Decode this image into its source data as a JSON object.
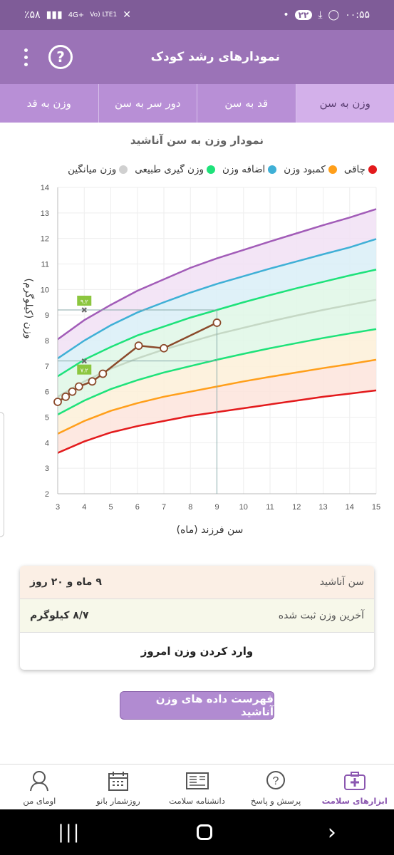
{
  "status": {
    "time": "۰۰:۵۵",
    "notif_count": "۲۲",
    "battery": "٪۵۸",
    "network": "4G+",
    "lte": "Vo) LTE1"
  },
  "appbar": {
    "title": "نمودارهای رشد کودک",
    "help": "?"
  },
  "tabs": [
    {
      "label": "وزن به سن",
      "active": true
    },
    {
      "label": "قد به سن",
      "active": false
    },
    {
      "label": "دور سر به سن",
      "active": false
    },
    {
      "label": "وزن به قد",
      "active": false
    }
  ],
  "chart_title": "نمودار وزن به سن آناشید",
  "legend": [
    {
      "label": "چاقی",
      "color": "#e31a1c"
    },
    {
      "label": "کمبود وزن",
      "color": "#ff9f1a"
    },
    {
      "label": "اضافه وزن",
      "color": "#3fb0d6"
    },
    {
      "label": "وزن گیری طبیعی",
      "color": "#1ee27a"
    },
    {
      "label": "وزن میانگین",
      "color": "#d0d0d0"
    }
  ],
  "chart_data": {
    "type": "line",
    "xlabel": "سن فرزند (ماه)",
    "ylabel": "وزن (کیلوگرم)",
    "xlim": [
      3,
      15
    ],
    "ylim": [
      2,
      14
    ],
    "xticks": [
      3,
      4,
      5,
      6,
      7,
      8,
      9,
      10,
      11,
      12,
      13,
      14,
      15
    ],
    "yticks": [
      2,
      3,
      4,
      5,
      6,
      7,
      8,
      9,
      10,
      11,
      12,
      13,
      14
    ],
    "series": [
      {
        "kind": "curve",
        "color": "#e31a1c",
        "x": [
          3,
          4,
          5,
          6,
          7,
          8,
          9,
          10,
          11,
          12,
          13,
          14,
          15
        ],
        "values": [
          3.6,
          4.05,
          4.4,
          4.65,
          4.85,
          5.05,
          5.2,
          5.35,
          5.5,
          5.65,
          5.8,
          5.92,
          6.05
        ]
      },
      {
        "kind": "curve",
        "color": "#ff9f1a",
        "x": [
          3,
          4,
          5,
          6,
          7,
          8,
          9,
          10,
          11,
          12,
          13,
          14,
          15
        ],
        "values": [
          4.35,
          4.85,
          5.25,
          5.55,
          5.8,
          6.0,
          6.2,
          6.4,
          6.58,
          6.75,
          6.92,
          7.08,
          7.25
        ]
      },
      {
        "kind": "curve",
        "color": "#1ee27a",
        "x": [
          3,
          4,
          5,
          6,
          7,
          8,
          9,
          10,
          11,
          12,
          13,
          14,
          15
        ],
        "values": [
          5.1,
          5.65,
          6.1,
          6.45,
          6.75,
          7.0,
          7.25,
          7.48,
          7.7,
          7.9,
          8.1,
          8.28,
          8.45
        ]
      },
      {
        "kind": "curve",
        "color": "#c5d8c5",
        "x": [
          3,
          4,
          5,
          6,
          7,
          8,
          9,
          10,
          11,
          12,
          13,
          14,
          15
        ],
        "values": [
          5.8,
          6.4,
          6.9,
          7.3,
          7.65,
          7.95,
          8.25,
          8.5,
          8.75,
          8.98,
          9.2,
          9.4,
          9.6
        ]
      },
      {
        "kind": "curve",
        "color": "#1ee27a",
        "x": [
          3,
          4,
          5,
          6,
          7,
          8,
          9,
          10,
          11,
          12,
          13,
          14,
          15
        ],
        "values": [
          6.6,
          7.25,
          7.75,
          8.2,
          8.55,
          8.9,
          9.2,
          9.5,
          9.78,
          10.05,
          10.3,
          10.55,
          10.78
        ]
      },
      {
        "kind": "curve",
        "color": "#3fb0d6",
        "x": [
          3,
          4,
          5,
          6,
          7,
          8,
          9,
          10,
          11,
          12,
          13,
          14,
          15
        ],
        "values": [
          7.3,
          8.0,
          8.6,
          9.1,
          9.5,
          9.88,
          10.22,
          10.52,
          10.82,
          11.1,
          11.38,
          11.65,
          11.98
        ]
      },
      {
        "kind": "curve",
        "color": "#a25cb8",
        "x": [
          3,
          4,
          5,
          6,
          7,
          8,
          9,
          10,
          11,
          12,
          13,
          14,
          15
        ],
        "values": [
          8.05,
          8.8,
          9.4,
          9.95,
          10.4,
          10.85,
          11.22,
          11.55,
          11.88,
          12.2,
          12.52,
          12.82,
          13.15
        ]
      },
      {
        "kind": "measure",
        "name": "",
        "color": "#8b4a2b",
        "x": [
          3.0,
          3.3,
          3.55,
          3.8,
          4.3,
          4.7,
          6.05,
          7.0,
          9.0
        ],
        "values": [
          5.6,
          5.8,
          6.0,
          6.2,
          6.4,
          6.7,
          7.8,
          7.7,
          8.7
        ]
      }
    ],
    "markers": [
      {
        "x": 4,
        "y": 9.2,
        "label": "۹.۲"
      },
      {
        "x": 4,
        "y": 7.2,
        "label": "۷.۲"
      }
    ]
  },
  "card": {
    "age_label": "سن آناشید",
    "age_value": "۹ ماه و ۲۰ روز",
    "weight_label": "آخرین وزن ثبت شده",
    "weight_value": "۸/۷ کیلوگرم",
    "cta": "وارد کردن وزن امروز"
  },
  "list_button": "فهرست داده های وزن آناشید",
  "bottom_nav": [
    {
      "label": "ابزارهای سلامت",
      "icon": "first-aid-kit-icon",
      "active": true
    },
    {
      "label": "پرسش و پاسخ",
      "icon": "question-bubble-icon",
      "active": false
    },
    {
      "label": "دانشنامه سلامت",
      "icon": "newspaper-icon",
      "active": false
    },
    {
      "label": "روزشمار بانو",
      "icon": "calendar-icon",
      "active": false
    },
    {
      "label": "اومای من",
      "icon": "woman-avatar-icon",
      "active": false
    }
  ]
}
